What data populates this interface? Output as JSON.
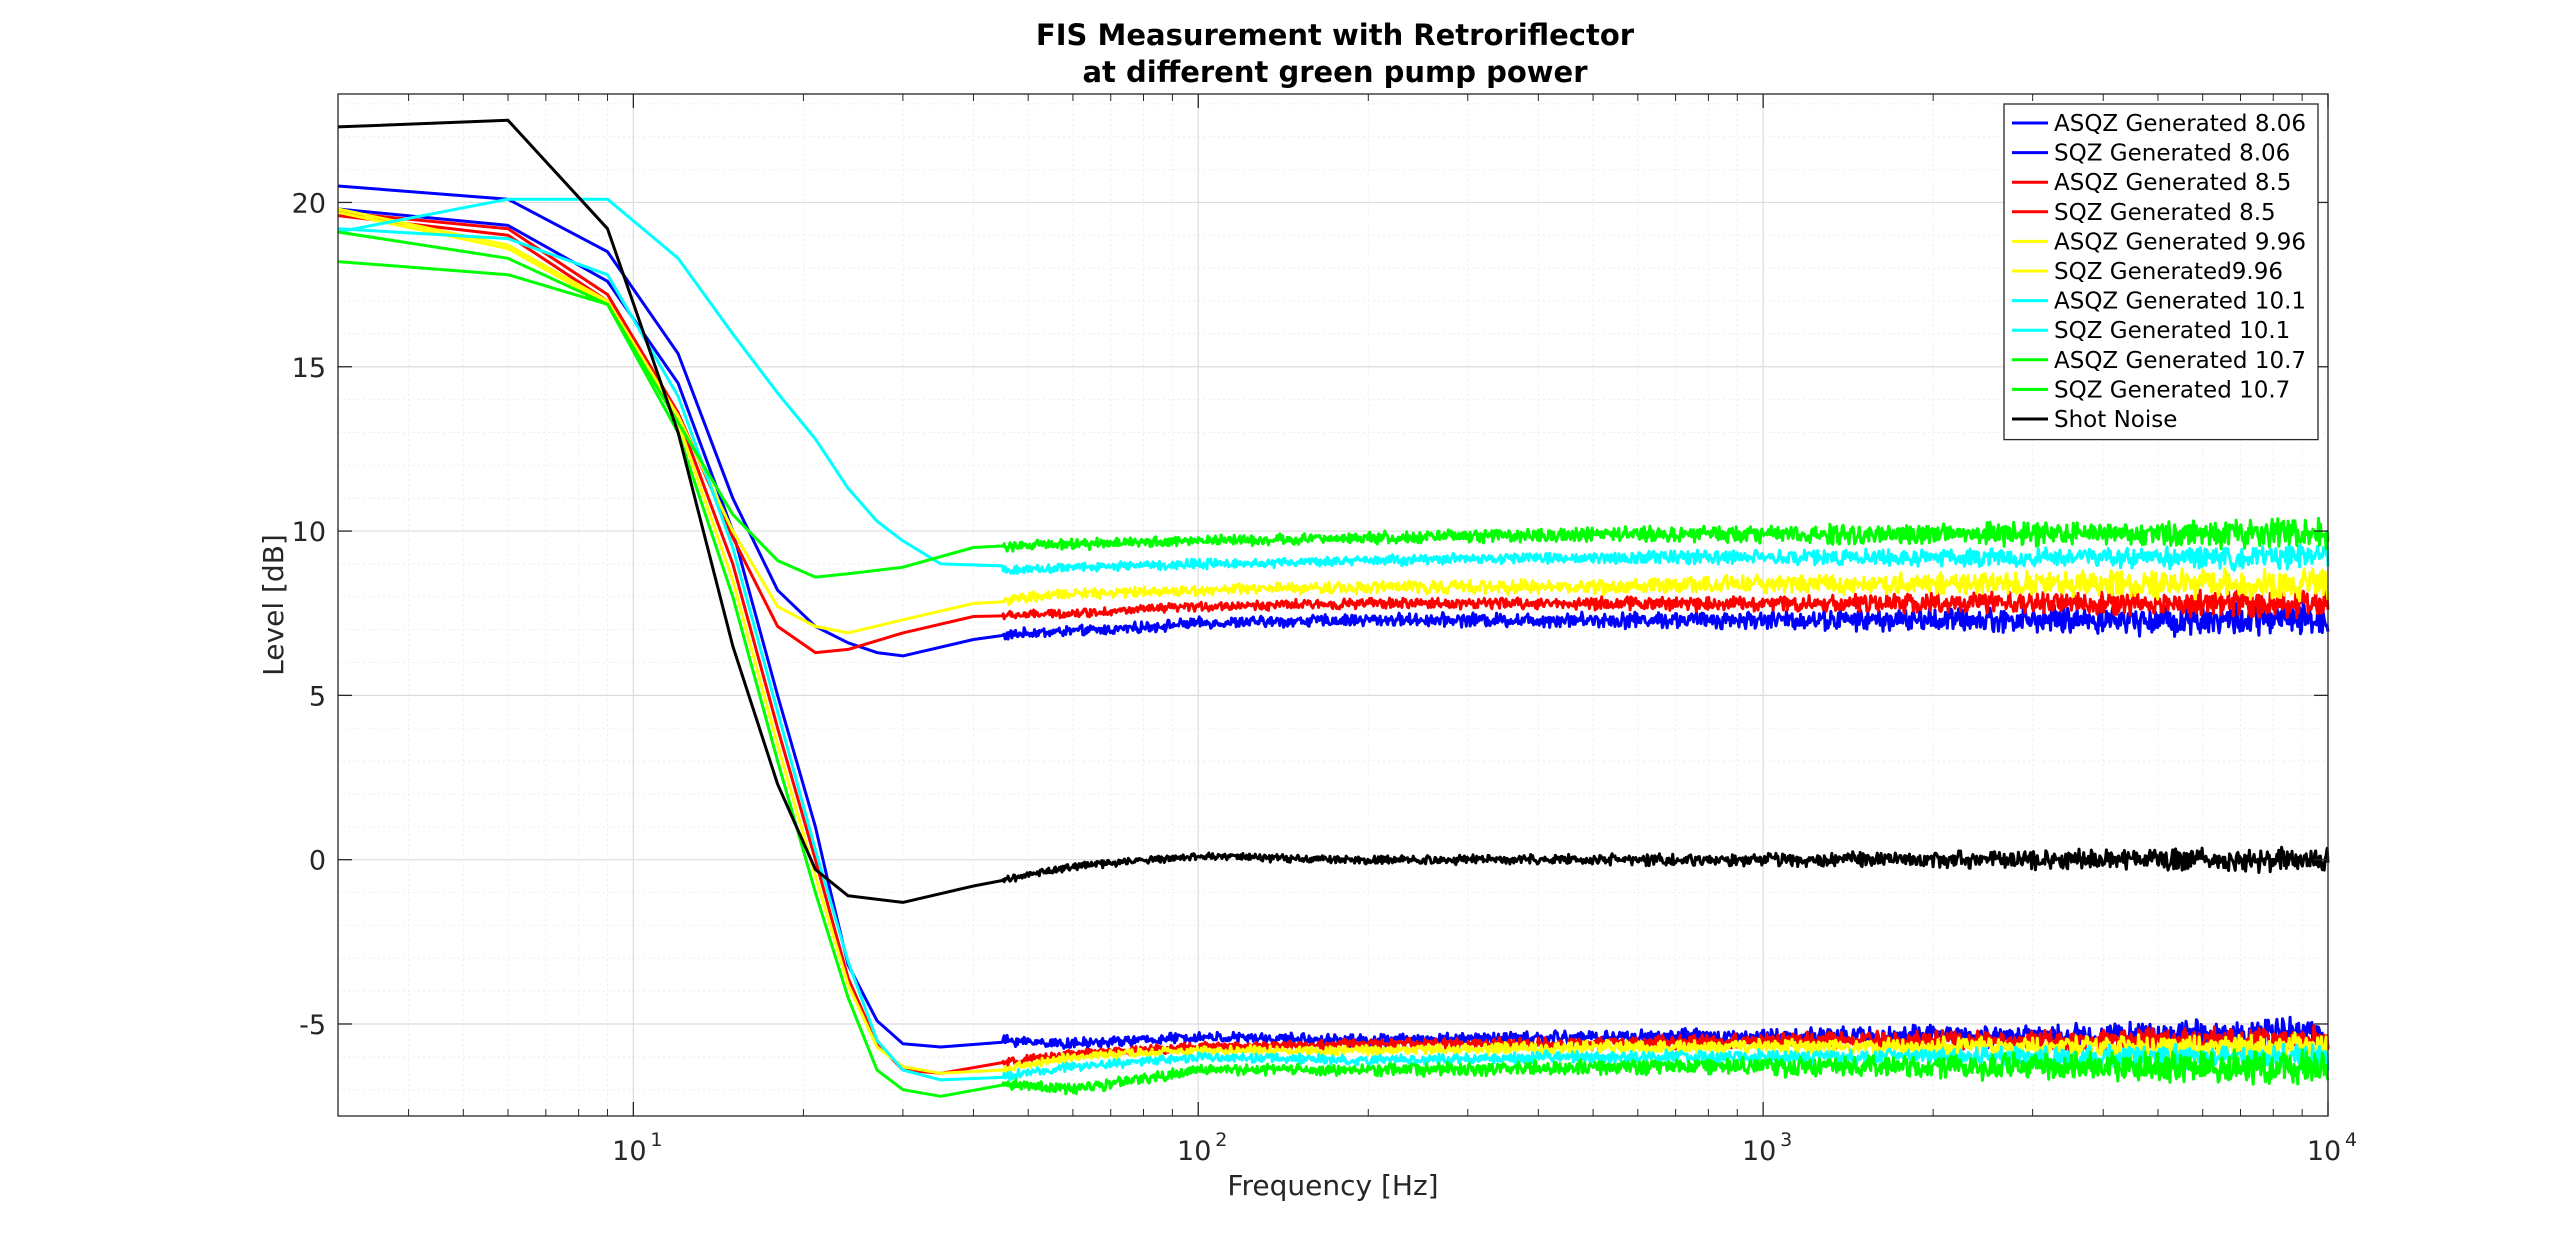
{
  "chart_data": {
    "type": "line",
    "title": [
      "FIS Measurement with Retroriflector",
      "at different green pump power"
    ],
    "xlabel": "Frequency [Hz]",
    "ylabel": "Level [dB]",
    "xscale": "log",
    "xlim": [
      3,
      10000
    ],
    "ylim": [
      -7.8,
      23.3
    ],
    "grid": true,
    "legend_position": "top-right",
    "x_ticks": [
      {
        "value": 10,
        "base": "10",
        "exp": "1"
      },
      {
        "value": 100,
        "base": "10",
        "exp": "2"
      },
      {
        "value": 1000,
        "base": "10",
        "exp": "3"
      },
      {
        "value": 10000,
        "base": "10",
        "exp": "4"
      }
    ],
    "y_ticks": [
      -5,
      0,
      5,
      10,
      15,
      20
    ],
    "series": [
      {
        "name": "ASQZ Generated 8.06",
        "color": "#0000ff",
        "points": [
          [
            3,
            20.5
          ],
          [
            6,
            20.1
          ],
          [
            9,
            18.5
          ],
          [
            12,
            15.4
          ],
          [
            15,
            11
          ],
          [
            18,
            8.2
          ],
          [
            21,
            7.1
          ],
          [
            24,
            6.6
          ],
          [
            27,
            6.3
          ],
          [
            30,
            6.2
          ],
          [
            40,
            6.7
          ],
          [
            50,
            6.9
          ],
          [
            70,
            7.0
          ],
          [
            100,
            7.2
          ],
          [
            200,
            7.3
          ],
          [
            500,
            7.3
          ],
          [
            1000,
            7.3
          ],
          [
            10000,
            7.3
          ]
        ],
        "noise_base": 0.12,
        "noise_grow": 0.3
      },
      {
        "name": "SQZ Generated 8.06",
        "color": "#0000ff",
        "points": [
          [
            3,
            19.8
          ],
          [
            6,
            19.3
          ],
          [
            9,
            17.6
          ],
          [
            12,
            14.5
          ],
          [
            15,
            10
          ],
          [
            18,
            5
          ],
          [
            21,
            1
          ],
          [
            22,
            -0.5
          ],
          [
            24,
            -3.2
          ],
          [
            27,
            -4.9
          ],
          [
            30,
            -5.6
          ],
          [
            35,
            -5.7
          ],
          [
            45,
            -5.5
          ],
          [
            60,
            -5.6
          ],
          [
            100,
            -5.4
          ],
          [
            200,
            -5.5
          ],
          [
            500,
            -5.4
          ],
          [
            1000,
            -5.4
          ],
          [
            10000,
            -5.3
          ]
        ],
        "noise_base": 0.12,
        "noise_grow": 0.25
      },
      {
        "name": "ASQZ Generated 8.5",
        "color": "#ff0000",
        "points": [
          [
            3,
            19.7
          ],
          [
            6,
            19.2
          ],
          [
            9,
            17.2
          ],
          [
            12,
            13.6
          ],
          [
            15,
            9.8
          ],
          [
            18,
            7.1
          ],
          [
            21,
            6.3
          ],
          [
            24,
            6.4
          ],
          [
            30,
            6.9
          ],
          [
            40,
            7.4
          ],
          [
            60,
            7.5
          ],
          [
            100,
            7.7
          ],
          [
            200,
            7.8
          ],
          [
            500,
            7.8
          ],
          [
            1000,
            7.8
          ],
          [
            10000,
            7.8
          ]
        ],
        "noise_base": 0.1,
        "noise_grow": 0.25
      },
      {
        "name": "SQZ Generated 8.5",
        "color": "#ff0000",
        "points": [
          [
            3,
            19.6
          ],
          [
            6,
            19.0
          ],
          [
            9,
            17.0
          ],
          [
            12,
            13.5
          ],
          [
            15,
            9
          ],
          [
            18,
            4
          ],
          [
            21,
            0
          ],
          [
            24,
            -3.6
          ],
          [
            27,
            -5.6
          ],
          [
            30,
            -6.4
          ],
          [
            35,
            -6.5
          ],
          [
            45,
            -6.2
          ],
          [
            60,
            -5.9
          ],
          [
            100,
            -5.7
          ],
          [
            200,
            -5.6
          ],
          [
            500,
            -5.6
          ],
          [
            1000,
            -5.5
          ],
          [
            10000,
            -5.5
          ]
        ],
        "noise_base": 0.1,
        "noise_grow": 0.22
      },
      {
        "name": "ASQZ Generated 9.96",
        "color": "#ffff00",
        "points": [
          [
            3,
            19.8
          ],
          [
            6,
            18.7
          ],
          [
            9,
            17.0
          ],
          [
            12,
            13.5
          ],
          [
            15,
            10
          ],
          [
            18,
            7.7
          ],
          [
            21,
            7.1
          ],
          [
            24,
            6.9
          ],
          [
            30,
            7.3
          ],
          [
            40,
            7.8
          ],
          [
            60,
            8.1
          ],
          [
            100,
            8.2
          ],
          [
            200,
            8.3
          ],
          [
            500,
            8.3
          ],
          [
            1000,
            8.4
          ],
          [
            10000,
            8.4
          ]
        ],
        "noise_base": 0.12,
        "noise_grow": 0.28
      },
      {
        "name": "SQZ Generated9.96",
        "color": "#ffff00",
        "points": [
          [
            3,
            19.7
          ],
          [
            6,
            18.6
          ],
          [
            9,
            16.9
          ],
          [
            12,
            13.3
          ],
          [
            15,
            8.5
          ],
          [
            18,
            3.5
          ],
          [
            21,
            -0.5
          ],
          [
            24,
            -3.8
          ],
          [
            27,
            -5.7
          ],
          [
            30,
            -6.3
          ],
          [
            35,
            -6.5
          ],
          [
            45,
            -6.4
          ],
          [
            60,
            -6.0
          ],
          [
            100,
            -5.8
          ],
          [
            200,
            -5.8
          ],
          [
            500,
            -5.7
          ],
          [
            1000,
            -5.7
          ],
          [
            10000,
            -5.7
          ]
        ],
        "noise_base": 0.1,
        "noise_grow": 0.22
      },
      {
        "name": "ASQZ Generated 10.1",
        "color": "#00ffff",
        "points": [
          [
            3,
            19.1
          ],
          [
            6,
            20.1
          ],
          [
            9,
            20.1
          ],
          [
            12,
            18.3
          ],
          [
            15,
            16
          ],
          [
            18,
            14.2
          ],
          [
            21,
            12.8
          ],
          [
            24,
            11.3
          ],
          [
            27,
            10.3
          ],
          [
            30,
            9.7
          ],
          [
            35,
            9.0
          ],
          [
            45,
            8.8
          ],
          [
            60,
            8.9
          ],
          [
            100,
            9.0
          ],
          [
            200,
            9.1
          ],
          [
            500,
            9.2
          ],
          [
            1000,
            9.2
          ],
          [
            10000,
            9.2
          ]
        ],
        "noise_base": 0.1,
        "noise_grow": 0.2
      },
      {
        "name": "SQZ Generated 10.1",
        "color": "#00ffff",
        "points": [
          [
            3,
            19.2
          ],
          [
            6,
            18.9
          ],
          [
            9,
            17.8
          ],
          [
            12,
            14.1
          ],
          [
            15,
            9.5
          ],
          [
            18,
            4.5
          ],
          [
            21,
            0.3
          ],
          [
            24,
            -3.1
          ],
          [
            27,
            -5.5
          ],
          [
            30,
            -6.4
          ],
          [
            35,
            -6.7
          ],
          [
            45,
            -6.6
          ],
          [
            60,
            -6.3
          ],
          [
            100,
            -6.0
          ],
          [
            200,
            -6.1
          ],
          [
            500,
            -6.0
          ],
          [
            1000,
            -6.0
          ],
          [
            10000,
            -6.0
          ]
        ],
        "noise_base": 0.1,
        "noise_grow": 0.22
      },
      {
        "name": "ASQZ Generated 10.7",
        "color": "#00ff00",
        "points": [
          [
            3,
            18.2
          ],
          [
            6,
            17.8
          ],
          [
            9,
            16.9
          ],
          [
            12,
            13.3
          ],
          [
            15,
            10.5
          ],
          [
            18,
            9.1
          ],
          [
            21,
            8.6
          ],
          [
            24,
            8.7
          ],
          [
            30,
            8.9
          ],
          [
            40,
            9.5
          ],
          [
            60,
            9.6
          ],
          [
            100,
            9.7
          ],
          [
            200,
            9.8
          ],
          [
            500,
            9.9
          ],
          [
            1000,
            9.9
          ],
          [
            10000,
            9.9
          ]
        ],
        "noise_base": 0.12,
        "noise_grow": 0.25
      },
      {
        "name": "SQZ Generated 10.7",
        "color": "#00ff00",
        "points": [
          [
            3,
            19.1
          ],
          [
            6,
            18.3
          ],
          [
            9,
            16.9
          ],
          [
            12,
            13.0
          ],
          [
            15,
            8
          ],
          [
            18,
            3
          ],
          [
            21,
            -1
          ],
          [
            24,
            -4.2
          ],
          [
            27,
            -6.4
          ],
          [
            30,
            -7.0
          ],
          [
            35,
            -7.2
          ],
          [
            45,
            -6.8
          ],
          [
            60,
            -7.0
          ],
          [
            100,
            -6.4
          ],
          [
            200,
            -6.4
          ],
          [
            500,
            -6.3
          ],
          [
            1000,
            -6.3
          ],
          [
            10000,
            -6.3
          ]
        ],
        "noise_base": 0.12,
        "noise_grow": 0.3
      },
      {
        "name": "Shot Noise",
        "color": "#000000",
        "points": [
          [
            3,
            22.3
          ],
          [
            6,
            22.5
          ],
          [
            9,
            19.2
          ],
          [
            12,
            13
          ],
          [
            15,
            6.5
          ],
          [
            18,
            2.3
          ],
          [
            21,
            -0.3
          ],
          [
            24,
            -1.1
          ],
          [
            30,
            -1.3
          ],
          [
            40,
            -0.8
          ],
          [
            60,
            -0.2
          ],
          [
            100,
            0.1
          ],
          [
            200,
            0
          ],
          [
            500,
            0
          ],
          [
            1000,
            0
          ],
          [
            10000,
            0
          ]
        ],
        "noise_base": 0.08,
        "noise_grow": 0.22
      }
    ]
  }
}
